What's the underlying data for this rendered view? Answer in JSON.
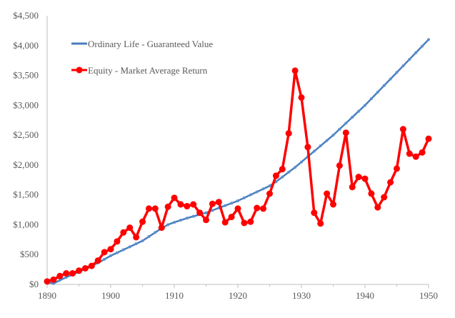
{
  "chart_data": {
    "type": "line",
    "title": "",
    "xlabel": "",
    "ylabel": "",
    "xlim": [
      1890,
      1950
    ],
    "ylim": [
      0,
      4500
    ],
    "x_ticks": [
      1890,
      1900,
      1910,
      1920,
      1930,
      1940,
      1950
    ],
    "x_tick_labels": [
      "1890",
      "1900",
      "1910",
      "1920",
      "1930",
      "1940",
      "1950"
    ],
    "y_ticks": [
      0,
      500,
      1000,
      1500,
      2000,
      2500,
      3000,
      3500,
      4000,
      4500
    ],
    "y_tick_labels": [
      "$0",
      "$500",
      "$1,000",
      "$1,500",
      "$2,000",
      "$2,500",
      "$3,000",
      "$3,500",
      "$4,000",
      "$4,500"
    ],
    "grid": false,
    "legend_placement": "top-left",
    "x": [
      1890,
      1891,
      1892,
      1893,
      1894,
      1895,
      1896,
      1897,
      1898,
      1899,
      1900,
      1901,
      1902,
      1903,
      1904,
      1905,
      1906,
      1907,
      1908,
      1909,
      1910,
      1911,
      1912,
      1913,
      1914,
      1915,
      1916,
      1917,
      1918,
      1919,
      1920,
      1921,
      1922,
      1923,
      1924,
      1925,
      1926,
      1927,
      1928,
      1929,
      1930,
      1931,
      1932,
      1933,
      1934,
      1935,
      1936,
      1937,
      1938,
      1939,
      1940,
      1941,
      1942,
      1943,
      1944,
      1945,
      1946,
      1947,
      1948,
      1949,
      1950
    ],
    "series": [
      {
        "name": "Ordinary Life - Guaranteed Value",
        "color": "#4A7EBB",
        "values": [
          40,
          15,
          70,
          120,
          165,
          210,
          260,
          310,
          360,
          420,
          480,
          530,
          580,
          630,
          680,
          730,
          800,
          870,
          940,
          1000,
          1040,
          1075,
          1110,
          1140,
          1170,
          1200,
          1240,
          1280,
          1320,
          1360,
          1400,
          1450,
          1500,
          1550,
          1600,
          1650,
          1720,
          1800,
          1880,
          1960,
          2050,
          2140,
          2230,
          2320,
          2410,
          2500,
          2600,
          2700,
          2800,
          2900,
          3000,
          3110,
          3220,
          3330,
          3440,
          3550,
          3660,
          3770,
          3880,
          3990,
          4100
        ]
      },
      {
        "name": "Equity - Market Average Return",
        "color": "#FF0000",
        "values": [
          50,
          80,
          140,
          185,
          185,
          230,
          270,
          310,
          400,
          540,
          590,
          720,
          870,
          950,
          790,
          1050,
          1270,
          1270,
          950,
          1300,
          1450,
          1340,
          1310,
          1340,
          1200,
          1080,
          1350,
          1380,
          1040,
          1130,
          1270,
          1030,
          1050,
          1280,
          1270,
          1520,
          1820,
          1930,
          2530,
          3580,
          3130,
          2300,
          1200,
          1020,
          1520,
          1340,
          1990,
          2540,
          1630,
          1800,
          1770,
          1520,
          1290,
          1460,
          1710,
          1940,
          2600,
          2190,
          2140,
          2210,
          2440
        ]
      }
    ]
  }
}
